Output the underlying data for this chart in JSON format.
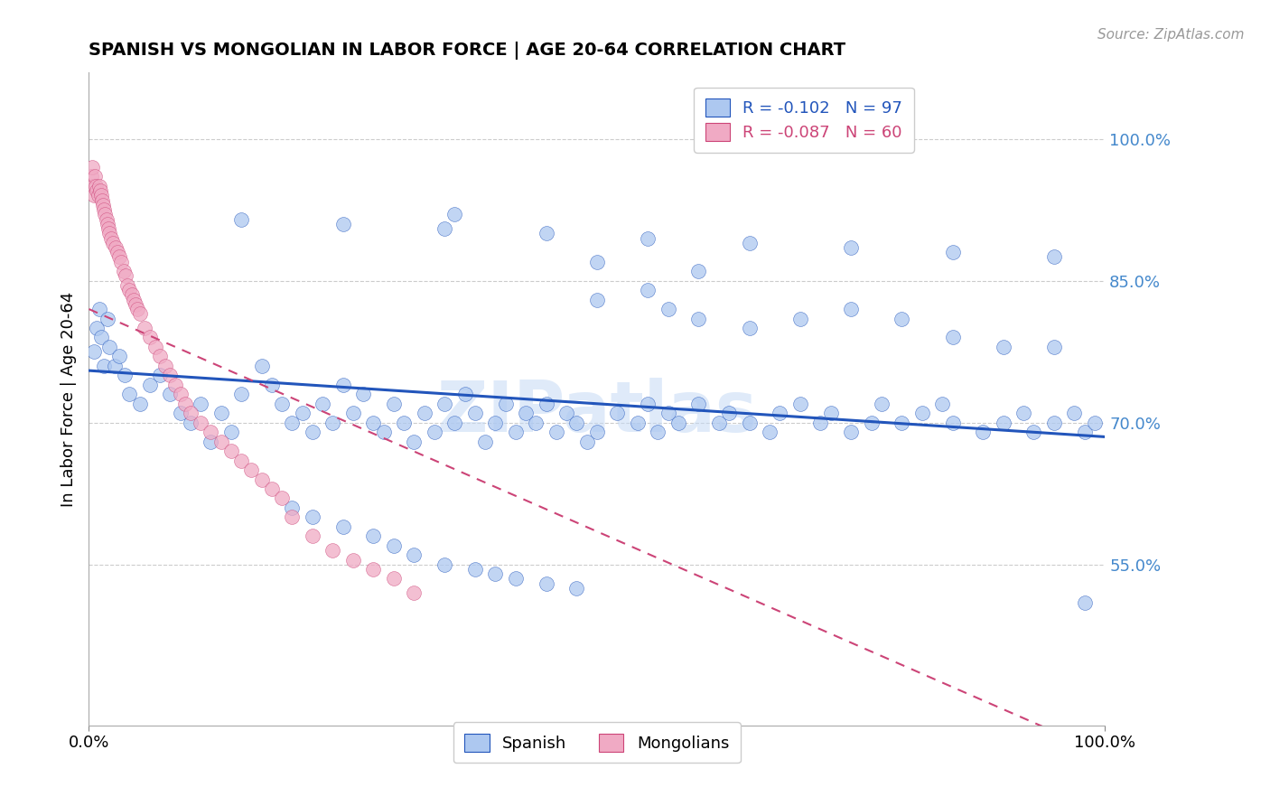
{
  "title": "SPANISH VS MONGOLIAN IN LABOR FORCE | AGE 20-64 CORRELATION CHART",
  "source": "Source: ZipAtlas.com",
  "ylabel": "In Labor Force | Age 20-64",
  "xlim": [
    0.0,
    1.0
  ],
  "ylim": [
    0.38,
    1.07
  ],
  "yticks": [
    0.55,
    0.7,
    0.85,
    1.0
  ],
  "ytick_labels": [
    "55.0%",
    "70.0%",
    "85.0%",
    "100.0%"
  ],
  "xtick_labels": [
    "0.0%",
    "100.0%"
  ],
  "legend_R_spanish": "-0.102",
  "legend_N_spanish": "97",
  "legend_R_mongolian": "-0.087",
  "legend_N_mongolian": "60",
  "spanish_color": "#adc8f0",
  "mongolian_color": "#f0aac4",
  "trend_spanish_color": "#2255bb",
  "trend_mongolian_color": "#cc4477",
  "watermark": "ZIPatlas",
  "spanish_x": [
    0.005,
    0.008,
    0.01,
    0.012,
    0.015,
    0.018,
    0.02,
    0.025,
    0.03,
    0.035,
    0.04,
    0.05,
    0.06,
    0.07,
    0.08,
    0.09,
    0.1,
    0.11,
    0.12,
    0.13,
    0.14,
    0.15,
    0.17,
    0.18,
    0.19,
    0.2,
    0.21,
    0.22,
    0.23,
    0.24,
    0.25,
    0.26,
    0.27,
    0.28,
    0.29,
    0.3,
    0.31,
    0.32,
    0.33,
    0.34,
    0.35,
    0.36,
    0.37,
    0.38,
    0.39,
    0.4,
    0.41,
    0.42,
    0.43,
    0.44,
    0.45,
    0.46,
    0.47,
    0.48,
    0.49,
    0.5,
    0.52,
    0.54,
    0.55,
    0.56,
    0.57,
    0.58,
    0.6,
    0.62,
    0.63,
    0.65,
    0.67,
    0.68,
    0.7,
    0.72,
    0.73,
    0.75,
    0.77,
    0.78,
    0.8,
    0.82,
    0.84,
    0.85,
    0.88,
    0.9,
    0.92,
    0.93,
    0.95,
    0.97,
    0.98,
    0.99,
    0.15,
    0.25,
    0.35,
    0.45,
    0.55,
    0.65,
    0.75,
    0.85,
    0.95,
    0.5,
    0.6
  ],
  "spanish_y": [
    0.775,
    0.8,
    0.82,
    0.79,
    0.76,
    0.81,
    0.78,
    0.76,
    0.77,
    0.75,
    0.73,
    0.72,
    0.74,
    0.75,
    0.73,
    0.71,
    0.7,
    0.72,
    0.68,
    0.71,
    0.69,
    0.73,
    0.76,
    0.74,
    0.72,
    0.7,
    0.71,
    0.69,
    0.72,
    0.7,
    0.74,
    0.71,
    0.73,
    0.7,
    0.69,
    0.72,
    0.7,
    0.68,
    0.71,
    0.69,
    0.72,
    0.7,
    0.73,
    0.71,
    0.68,
    0.7,
    0.72,
    0.69,
    0.71,
    0.7,
    0.72,
    0.69,
    0.71,
    0.7,
    0.68,
    0.69,
    0.71,
    0.7,
    0.72,
    0.69,
    0.71,
    0.7,
    0.72,
    0.7,
    0.71,
    0.7,
    0.69,
    0.71,
    0.72,
    0.7,
    0.71,
    0.69,
    0.7,
    0.72,
    0.7,
    0.71,
    0.72,
    0.7,
    0.69,
    0.7,
    0.71,
    0.69,
    0.7,
    0.71,
    0.69,
    0.7,
    0.915,
    0.91,
    0.905,
    0.9,
    0.895,
    0.89,
    0.885,
    0.88,
    0.875,
    0.87,
    0.86
  ],
  "spanish_outliers_x": [
    0.36,
    0.5,
    0.55,
    0.57,
    0.6,
    0.65,
    0.7,
    0.75,
    0.8,
    0.85,
    0.9,
    0.95,
    0.98,
    0.2,
    0.22,
    0.25,
    0.28,
    0.3,
    0.32,
    0.35,
    0.38,
    0.4,
    0.42,
    0.45,
    0.48
  ],
  "spanish_outliers_y": [
    0.92,
    0.83,
    0.84,
    0.82,
    0.81,
    0.8,
    0.81,
    0.82,
    0.81,
    0.79,
    0.78,
    0.78,
    0.51,
    0.61,
    0.6,
    0.59,
    0.58,
    0.57,
    0.56,
    0.55,
    0.545,
    0.54,
    0.535,
    0.53,
    0.525
  ],
  "mongolian_x": [
    0.002,
    0.003,
    0.004,
    0.005,
    0.006,
    0.007,
    0.008,
    0.009,
    0.01,
    0.011,
    0.012,
    0.013,
    0.014,
    0.015,
    0.016,
    0.017,
    0.018,
    0.019,
    0.02,
    0.022,
    0.024,
    0.026,
    0.028,
    0.03,
    0.032,
    0.034,
    0.036,
    0.038,
    0.04,
    0.042,
    0.044,
    0.046,
    0.048,
    0.05,
    0.055,
    0.06,
    0.065,
    0.07,
    0.075,
    0.08,
    0.085,
    0.09,
    0.095,
    0.1,
    0.11,
    0.12,
    0.13,
    0.14,
    0.15,
    0.16,
    0.17,
    0.18,
    0.19,
    0.2,
    0.22,
    0.24,
    0.26,
    0.28,
    0.3,
    0.32
  ],
  "mongolian_y": [
    0.96,
    0.97,
    0.95,
    0.94,
    0.96,
    0.95,
    0.945,
    0.94,
    0.95,
    0.945,
    0.94,
    0.935,
    0.93,
    0.925,
    0.92,
    0.915,
    0.91,
    0.905,
    0.9,
    0.895,
    0.89,
    0.885,
    0.88,
    0.875,
    0.87,
    0.86,
    0.855,
    0.845,
    0.84,
    0.835,
    0.83,
    0.825,
    0.82,
    0.815,
    0.8,
    0.79,
    0.78,
    0.77,
    0.76,
    0.75,
    0.74,
    0.73,
    0.72,
    0.71,
    0.7,
    0.69,
    0.68,
    0.67,
    0.66,
    0.65,
    0.64,
    0.63,
    0.62,
    0.6,
    0.58,
    0.565,
    0.555,
    0.545,
    0.535,
    0.52
  ]
}
